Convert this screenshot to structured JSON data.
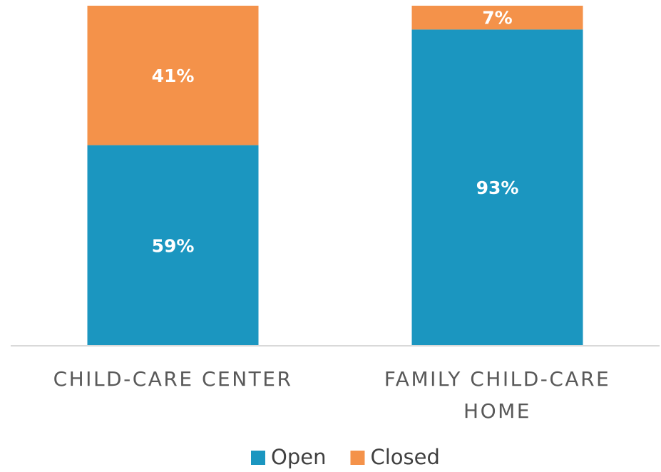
{
  "chart_data": {
    "type": "stacked_bar",
    "categories": [
      "CHILD-CARE CENTER",
      "FAMILY CHILD-CARE HOME"
    ],
    "series": [
      {
        "name": "Open",
        "color": "#1b96c0",
        "values": [
          59,
          93
        ],
        "value_labels": [
          "59%",
          "93%"
        ]
      },
      {
        "name": "Closed",
        "color": "#f4924a",
        "values": [
          41,
          7
        ],
        "value_labels": [
          "41%",
          "7%"
        ]
      }
    ],
    "ylim": [
      0,
      100
    ],
    "legend": "bottom"
  }
}
